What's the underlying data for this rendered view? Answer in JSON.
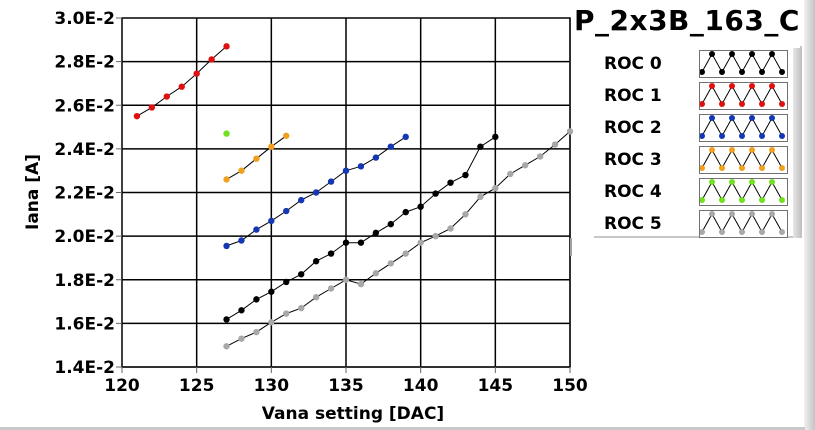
{
  "chart_data": {
    "type": "line",
    "title": "P_2x3B_163_C",
    "xlabel": "Vana setting [DAC]",
    "ylabel": "Iana [A]",
    "xlim": [
      120,
      150
    ],
    "ylim": [
      0.014,
      0.03
    ],
    "x_ticks": [
      120,
      125,
      130,
      135,
      140,
      145,
      150
    ],
    "x_tick_labels": [
      "120",
      "125",
      "130",
      "135",
      "140",
      "145",
      "150"
    ],
    "y_ticks": [
      0.014,
      0.016,
      0.018,
      0.02,
      0.022,
      0.024,
      0.026,
      0.028,
      0.03
    ],
    "y_tick_labels": [
      "1.4E-2",
      "1.6E-2",
      "1.8E-2",
      "2.0E-2",
      "2.2E-2",
      "2.4E-2",
      "2.6E-2",
      "2.8E-2",
      "3.0E-2"
    ],
    "grid": true,
    "legend_position": "right",
    "series": [
      {
        "name": "ROC 0",
        "color": "#000000",
        "x": [
          127,
          128,
          129,
          130,
          131,
          132,
          133,
          134,
          135,
          136,
          137,
          138,
          139,
          140,
          141,
          142,
          143,
          144,
          145
        ],
        "y": [
          0.01618,
          0.0166,
          0.0171,
          0.01745,
          0.0179,
          0.01825,
          0.01885,
          0.0192,
          0.0197,
          0.0197,
          0.02015,
          0.02055,
          0.0211,
          0.02135,
          0.02195,
          0.02245,
          0.0228,
          0.0241,
          0.02455
        ]
      },
      {
        "name": "ROC 1",
        "color": "#e01010",
        "x": [
          121,
          122,
          123,
          124,
          125,
          126,
          127
        ],
        "y": [
          0.0255,
          0.0259,
          0.0264,
          0.02685,
          0.02745,
          0.0281,
          0.0287
        ]
      },
      {
        "name": "ROC 2",
        "color": "#1438b4",
        "x": [
          127,
          128,
          129,
          130,
          131,
          132,
          133,
          134,
          135,
          136,
          137,
          138,
          139
        ],
        "y": [
          0.01955,
          0.0198,
          0.0203,
          0.0207,
          0.02115,
          0.02165,
          0.022,
          0.0225,
          0.023,
          0.0232,
          0.0236,
          0.0241,
          0.02455
        ]
      },
      {
        "name": "ROC 3",
        "color": "#f0a020",
        "x": [
          127,
          128,
          129,
          130,
          131
        ],
        "y": [
          0.0226,
          0.023,
          0.02355,
          0.0241,
          0.0246
        ]
      },
      {
        "name": "ROC 4",
        "color": "#70e020",
        "x": [
          127
        ],
        "y": [
          0.0247
        ]
      },
      {
        "name": "ROC 5",
        "color": "#a8a8a8",
        "x": [
          127,
          128,
          129,
          130,
          131,
          132,
          133,
          134,
          135,
          136,
          137,
          138,
          139,
          140,
          141,
          142,
          143,
          144,
          145,
          146,
          147,
          148,
          149,
          150
        ],
        "y": [
          0.01495,
          0.0153,
          0.0156,
          0.01605,
          0.01645,
          0.0167,
          0.0172,
          0.0176,
          0.018,
          0.0178,
          0.0183,
          0.01875,
          0.0192,
          0.0197,
          0.02,
          0.02035,
          0.021,
          0.0218,
          0.0222,
          0.02285,
          0.02325,
          0.02365,
          0.0242,
          0.0248
        ]
      }
    ]
  }
}
